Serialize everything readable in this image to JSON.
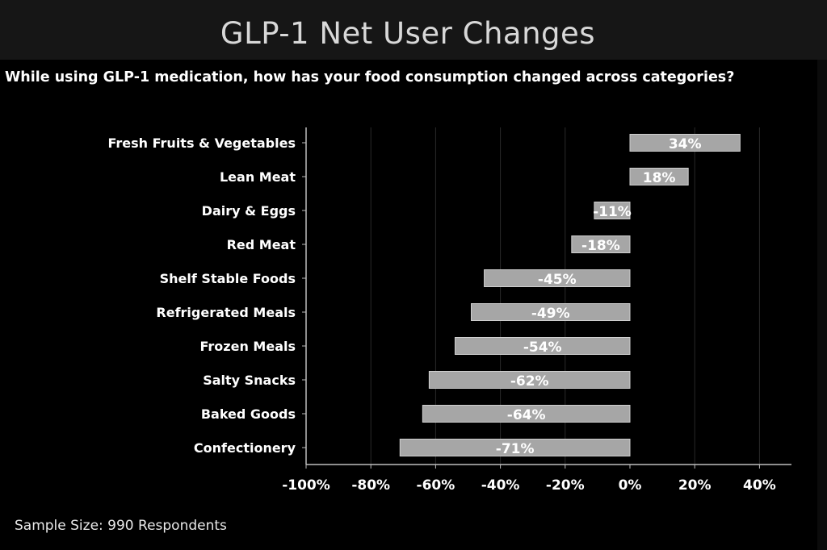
{
  "header": {
    "title": "GLP-1 Net User Changes"
  },
  "question": "While using GLP-1 medication, how has your food consumption changed across categories?",
  "footnote": "Sample Size: 990 Respondents",
  "colors": {
    "bar": "#a6a6a6",
    "bar_edge": "#cfcfcf",
    "axis": "#bdbdbd",
    "grid": "#2a2a2a",
    "text": "#ffffff"
  },
  "chart_data": {
    "type": "bar",
    "orientation": "horizontal",
    "title": "GLP-1 Net User Changes",
    "xlabel": "",
    "ylabel": "",
    "xlim": [
      -100,
      50
    ],
    "xticks": [
      -100,
      -80,
      -60,
      -40,
      -20,
      0,
      20,
      40
    ],
    "xtick_labels": [
      "-100%",
      "-80%",
      "-60%",
      "-40%",
      "-20%",
      "0%",
      "20%",
      "40%"
    ],
    "categories": [
      "Fresh Fruits & Vegetables",
      "Lean Meat",
      "Dairy & Eggs",
      "Red Meat",
      "Shelf Stable Foods",
      "Refrigerated Meals",
      "Frozen Meals",
      "Salty Snacks",
      "Baked Goods",
      "Confectionery"
    ],
    "values": [
      34,
      18,
      -11,
      -18,
      -45,
      -49,
      -54,
      -62,
      -64,
      -71
    ],
    "data_labels": [
      "34%",
      "18%",
      "-11%",
      "-18%",
      "-45%",
      "-49%",
      "-54%",
      "-62%",
      "-64%",
      "-71%"
    ],
    "grid": true
  }
}
